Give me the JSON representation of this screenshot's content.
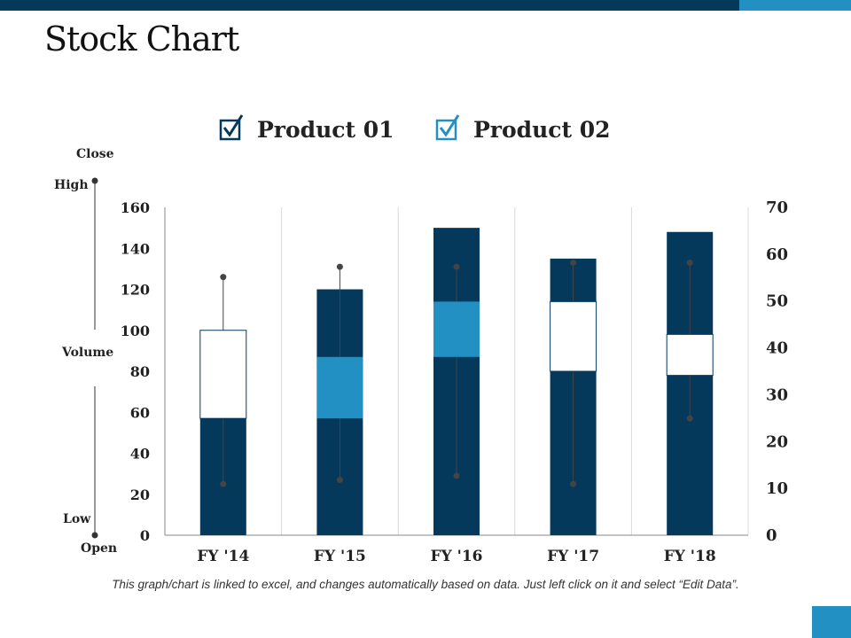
{
  "title": "Stock Chart",
  "footnote": "This graph/chart is linked to excel, and changes automatically based on data. Just left click on it and select “Edit Data”.",
  "colors": {
    "dark": "#05395c",
    "light": "#2390c3",
    "accent_bar": "#2390c3"
  },
  "legend_key": {
    "close": "Close",
    "high": "High",
    "volume": "Volume",
    "low": "Low",
    "open": "Open"
  },
  "chart_data": {
    "type": "stock",
    "categories": [
      "FY '14",
      "FY '15",
      "FY '16",
      "FY '17",
      "FY '18"
    ],
    "series": [
      {
        "name": "Product 01",
        "icon": "checkbox-checked-icon",
        "color": "#05395c"
      },
      {
        "name": "Product 02",
        "icon": "checkbox-checked-icon",
        "color": "#2390c3"
      }
    ],
    "volume": [
      100,
      120,
      150,
      135,
      148
    ],
    "open": [
      57,
      87,
      114,
      80,
      78
    ],
    "close": [
      100,
      57,
      87,
      114,
      98
    ],
    "high": [
      126,
      131,
      131,
      133,
      133
    ],
    "low": [
      25,
      27,
      29,
      25,
      57
    ],
    "y_left": {
      "min": 0,
      "max": 160,
      "ticks": [
        0,
        20,
        40,
        60,
        80,
        100,
        120,
        140,
        160
      ]
    },
    "y_right": {
      "min": 0,
      "max": 70,
      "ticks": [
        0,
        10,
        20,
        30,
        40,
        50,
        60,
        70
      ]
    },
    "grid": "vertical"
  }
}
